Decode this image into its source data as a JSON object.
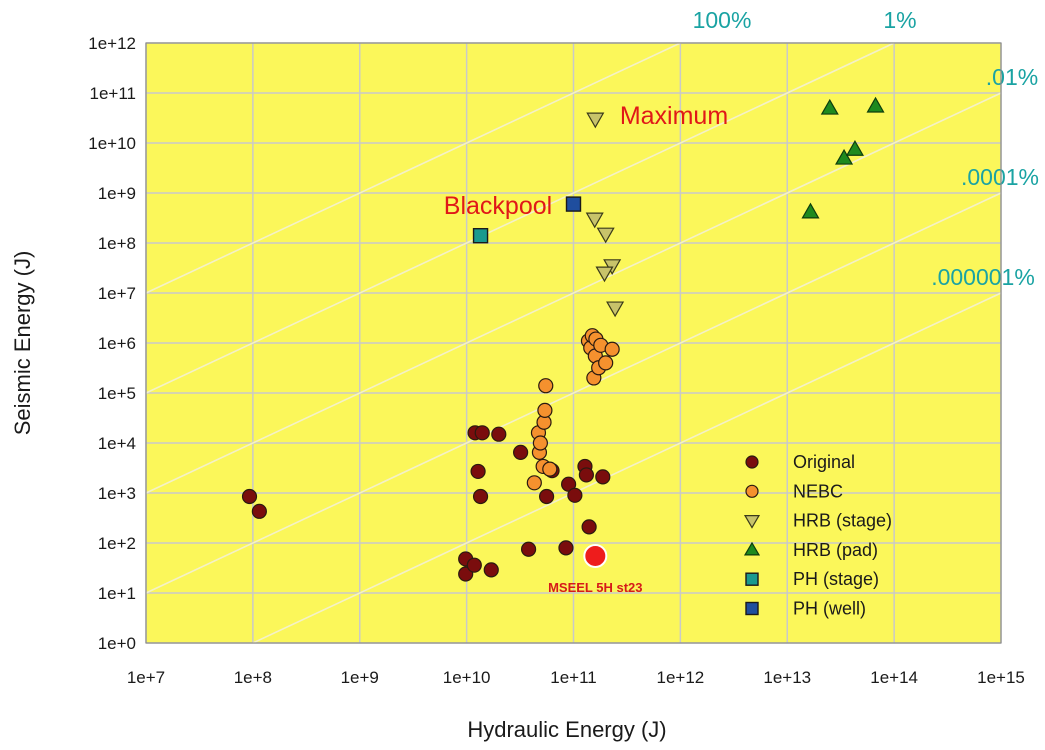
{
  "chart_data": {
    "type": "scatter",
    "xlabel": "Hydraulic Energy (J)",
    "ylabel": "Seismic Energy (J)",
    "x_scale": "log",
    "y_scale": "log",
    "xlim": [
      10000000.0,
      1000000000000000.0
    ],
    "ylim": [
      1,
      1000000000000.0
    ],
    "x_ticks": [
      "1e+7",
      "1e+8",
      "1e+9",
      "1e+10",
      "1e+11",
      "1e+12",
      "1e+13",
      "1e+14",
      "1e+15"
    ],
    "y_ticks": [
      "1e+0",
      "1e+1",
      "1e+2",
      "1e+3",
      "1e+4",
      "1e+5",
      "1e+6",
      "1e+7",
      "1e+8",
      "1e+9",
      "1e+10",
      "1e+11",
      "1e+12"
    ],
    "grid": true,
    "background": "#fbf75a",
    "legend_position": "bottom-right",
    "ratio_lines": [
      {
        "label": "100%",
        "ratio": 1
      },
      {
        "label": "1%",
        "ratio": 0.01
      },
      {
        "label": ".01%",
        "ratio": 0.0001
      },
      {
        "label": ".0001%",
        "ratio": 1e-06
      },
      {
        "label": ".000001%",
        "ratio": 1e-08
      }
    ],
    "series": [
      {
        "name": "Original",
        "marker": "circle",
        "color": "#7a0d0d",
        "points": [
          [
            93000000.0,
            850
          ],
          [
            115000000.0,
            430
          ],
          [
            9800000000.0,
            48
          ],
          [
            9800000000.0,
            24
          ],
          [
            11800000000.0,
            36
          ],
          [
            12000000000.0,
            16000.0
          ],
          [
            12800000000.0,
            2700
          ],
          [
            13500000000.0,
            850
          ],
          [
            14000000000.0,
            16000.0
          ],
          [
            17000000000.0,
            29
          ],
          [
            20000000000.0,
            15000.0
          ],
          [
            32000000000.0,
            6500
          ],
          [
            38000000000.0,
            75
          ],
          [
            56000000000.0,
            850
          ],
          [
            63000000000.0,
            2800
          ],
          [
            85000000000.0,
            80
          ],
          [
            90000000000.0,
            1500
          ],
          [
            103000000000.0,
            900
          ],
          [
            128000000000.0,
            3400
          ],
          [
            132000000000.0,
            2300
          ],
          [
            140000000000.0,
            210
          ],
          [
            188000000000.0,
            2100
          ]
        ]
      },
      {
        "name": "NEBC",
        "marker": "circle",
        "color": "#f5912e",
        "points": [
          [
            43000000000.0,
            1600
          ],
          [
            47000000000.0,
            16000.0
          ],
          [
            48000000000.0,
            6500
          ],
          [
            49000000000.0,
            10000.0
          ],
          [
            52000000000.0,
            3400
          ],
          [
            53000000000.0,
            26000.0
          ],
          [
            54000000000.0,
            45000.0
          ],
          [
            55000000000.0,
            140000.0
          ],
          [
            60000000000.0,
            3000
          ],
          [
            138000000000.0,
            1100000.0
          ],
          [
            145000000000.0,
            800000.0
          ],
          [
            150000000000.0,
            1400000.0
          ],
          [
            155000000000.0,
            200000.0
          ],
          [
            160000000000.0,
            550000.0
          ],
          [
            162000000000.0,
            1200000.0
          ],
          [
            172000000000.0,
            320000.0
          ],
          [
            180000000000.0,
            900000.0
          ],
          [
            200000000000.0,
            400000.0
          ],
          [
            230000000000.0,
            750000.0
          ]
        ]
      },
      {
        "name": "HRB (stage)",
        "marker": "triangle-down",
        "color": "#c8c36a",
        "points": [
          [
            160000000000.0,
            30000000000.0
          ],
          [
            158000000000.0,
            300000000.0
          ],
          [
            200000000000.0,
            150000000.0
          ],
          [
            230000000000.0,
            35000000.0
          ],
          [
            195000000000.0,
            25000000.0
          ],
          [
            245000000000.0,
            5000000.0
          ]
        ]
      },
      {
        "name": "HRB (pad)",
        "marker": "triangle-up",
        "color": "#1e8a1e",
        "points": [
          [
            16500000000000.0,
            420000000.0
          ],
          [
            25000000000000.0,
            50000000000.0
          ],
          [
            34000000000000.0,
            5000000000.0
          ],
          [
            43000000000000.0,
            7500000000.0
          ],
          [
            67000000000000.0,
            55000000000.0
          ]
        ]
      },
      {
        "name": "PH (stage)",
        "marker": "square",
        "color": "#1a9a8e",
        "points": [
          [
            13500000000.0,
            140000000.0
          ]
        ]
      },
      {
        "name": "PH (well)",
        "marker": "square",
        "color": "#1f4e9e",
        "points": [
          [
            100000000000.0,
            600000000.0
          ]
        ]
      }
    ],
    "highlight": {
      "label": "MSEEL 5H st23",
      "x": 160000000000.0,
      "y": 55,
      "color": "#ee1c1c"
    },
    "annotations": [
      {
        "text": "Maximum",
        "x": 160000000000.0,
        "y": 30000000000.0
      },
      {
        "text": "Blackpool",
        "x": 13500000000.0,
        "y": 140000000.0
      }
    ]
  }
}
